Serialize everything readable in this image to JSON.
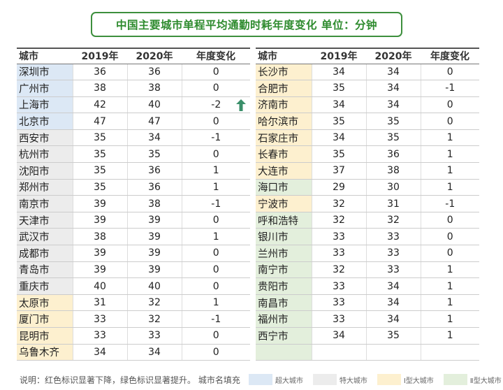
{
  "title": "中国主要城市单程平均通勤时耗年度变化  单位：分钟",
  "columns": [
    "城市",
    "2019年",
    "2020年",
    "年度变化"
  ],
  "tier_colors": {
    "super": "#dce8f5",
    "mega": "#ececec",
    "type1": "#fdf0cf",
    "type2": "#e3efdc"
  },
  "left_rows": [
    {
      "city": "深圳市",
      "y2019": "36",
      "y2020": "36",
      "change": "0",
      "tier": "super"
    },
    {
      "city": "广州市",
      "y2019": "38",
      "y2020": "38",
      "change": "0",
      "tier": "super"
    },
    {
      "city": "上海市",
      "y2019": "42",
      "y2020": "40",
      "change": "-2",
      "tier": "super",
      "mark": "green-up-arrow-icon"
    },
    {
      "city": "北京市",
      "y2019": "47",
      "y2020": "47",
      "change": "0",
      "tier": "super"
    },
    {
      "city": "西安市",
      "y2019": "35",
      "y2020": "34",
      "change": "-1",
      "tier": "mega"
    },
    {
      "city": "杭州市",
      "y2019": "35",
      "y2020": "35",
      "change": "0",
      "tier": "mega"
    },
    {
      "city": "沈阳市",
      "y2019": "35",
      "y2020": "36",
      "change": "1",
      "tier": "mega"
    },
    {
      "city": "郑州市",
      "y2019": "35",
      "y2020": "36",
      "change": "1",
      "tier": "mega"
    },
    {
      "city": "南京市",
      "y2019": "39",
      "y2020": "38",
      "change": "-1",
      "tier": "mega"
    },
    {
      "city": "天津市",
      "y2019": "39",
      "y2020": "39",
      "change": "0",
      "tier": "mega"
    },
    {
      "city": "武汉市",
      "y2019": "38",
      "y2020": "39",
      "change": "1",
      "tier": "mega"
    },
    {
      "city": "成都市",
      "y2019": "39",
      "y2020": "39",
      "change": "0",
      "tier": "mega"
    },
    {
      "city": "青岛市",
      "y2019": "39",
      "y2020": "39",
      "change": "0",
      "tier": "mega"
    },
    {
      "city": "重庆市",
      "y2019": "40",
      "y2020": "40",
      "change": "0",
      "tier": "mega"
    },
    {
      "city": "太原市",
      "y2019": "31",
      "y2020": "32",
      "change": "1",
      "tier": "type1"
    },
    {
      "city": "厦门市",
      "y2019": "33",
      "y2020": "32",
      "change": "-1",
      "tier": "type1"
    },
    {
      "city": "昆明市",
      "y2019": "33",
      "y2020": "33",
      "change": "0",
      "tier": "type1"
    },
    {
      "city": "乌鲁木齐",
      "y2019": "34",
      "y2020": "34",
      "change": "0",
      "tier": "type1"
    }
  ],
  "right_rows": [
    {
      "city": "长沙市",
      "y2019": "34",
      "y2020": "34",
      "change": "0",
      "tier": "type1"
    },
    {
      "city": "合肥市",
      "y2019": "35",
      "y2020": "34",
      "change": "-1",
      "tier": "type1"
    },
    {
      "city": "济南市",
      "y2019": "34",
      "y2020": "34",
      "change": "0",
      "tier": "type1"
    },
    {
      "city": "哈尔滨市",
      "y2019": "35",
      "y2020": "35",
      "change": "0",
      "tier": "type1"
    },
    {
      "city": "石家庄市",
      "y2019": "34",
      "y2020": "35",
      "change": "1",
      "tier": "type1"
    },
    {
      "city": "长春市",
      "y2019": "35",
      "y2020": "36",
      "change": "1",
      "tier": "type1"
    },
    {
      "city": "大连市",
      "y2019": "37",
      "y2020": "38",
      "change": "1",
      "tier": "type1"
    },
    {
      "city": "海口市",
      "y2019": "29",
      "y2020": "30",
      "change": "1",
      "tier": "type2"
    },
    {
      "city": "宁波市",
      "y2019": "32",
      "y2020": "31",
      "change": "-1",
      "tier": "type1"
    },
    {
      "city": "呼和浩特",
      "y2019": "32",
      "y2020": "32",
      "change": "0",
      "tier": "type2"
    },
    {
      "city": "银川市",
      "y2019": "33",
      "y2020": "33",
      "change": "0",
      "tier": "type2"
    },
    {
      "city": "兰州市",
      "y2019": "33",
      "y2020": "33",
      "change": "0",
      "tier": "type2"
    },
    {
      "city": "南宁市",
      "y2019": "32",
      "y2020": "33",
      "change": "1",
      "tier": "type2"
    },
    {
      "city": "贵阳市",
      "y2019": "33",
      "y2020": "34",
      "change": "1",
      "tier": "type2"
    },
    {
      "city": "南昌市",
      "y2019": "33",
      "y2020": "34",
      "change": "1",
      "tier": "type2"
    },
    {
      "city": "福州市",
      "y2019": "33",
      "y2020": "34",
      "change": "1",
      "tier": "type2"
    },
    {
      "city": "西宁市",
      "y2019": "34",
      "y2020": "35",
      "change": "1",
      "tier": "type2"
    },
    {
      "city": "",
      "y2019": "",
      "y2020": "",
      "change": "",
      "tier": "type2"
    }
  ],
  "note": {
    "text": "说明：红色标识显著下降，绿色标识显著提升。  城市名填充",
    "legend": [
      {
        "label": "超大城市",
        "tier": "super"
      },
      {
        "label": "特大城市",
        "tier": "mega"
      },
      {
        "label": "Ⅰ型大城市",
        "tier": "type1"
      },
      {
        "label": "Ⅱ型大城市",
        "tier": "type2"
      }
    ]
  }
}
